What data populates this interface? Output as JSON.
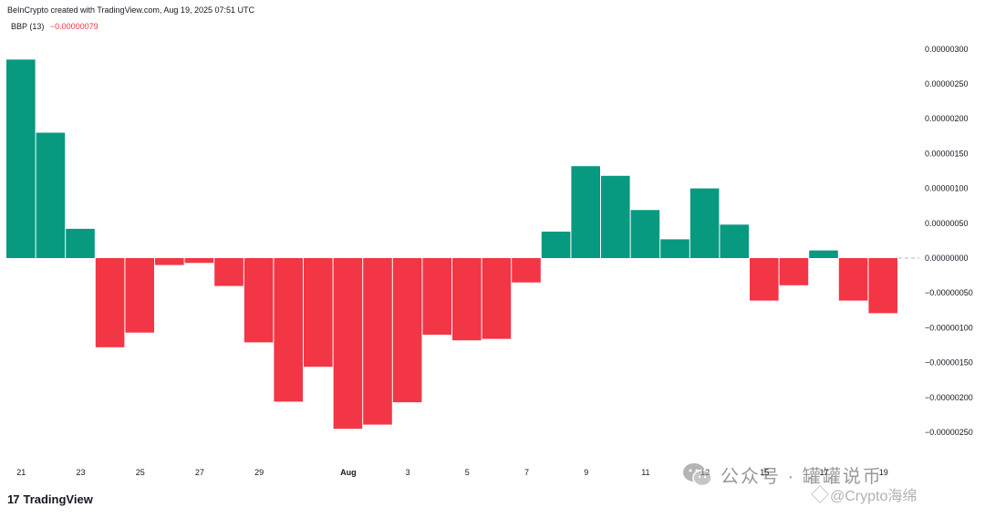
{
  "header": {
    "credit": "BeInCrypto created with TradingView.com, Aug 19, 2025 07:51 UTC"
  },
  "indicator": {
    "name": "BBP (13)",
    "value": "−0.00000079"
  },
  "brand": {
    "logo_text": "TradingView"
  },
  "watermark": {
    "text": "公众号 · 罐罐说币",
    "handle": "@Crypto海绵"
  },
  "colors": {
    "positive": "#089981",
    "negative": "#f23645"
  },
  "chart_data": {
    "type": "bar",
    "title": "",
    "xlabel": "",
    "ylabel": "",
    "ylim": [
      -2.9e-06,
      3e-06
    ],
    "grid": false,
    "x_tick_labels": [
      "21",
      "23",
      "25",
      "27",
      "29",
      "Aug",
      "3",
      "5",
      "7",
      "9",
      "11",
      "13",
      "15",
      "17",
      "19"
    ],
    "y_tick_labels": [
      "0.00000300",
      "0.00000250",
      "0.00000200",
      "0.00000150",
      "0.00000100",
      "0.00000050",
      "0.00000000",
      "−0.00000050",
      "−0.00000100",
      "−0.00000150",
      "−0.00000200",
      "−0.00000250"
    ],
    "y_ticks": [
      3e-06,
      2.5e-06,
      2e-06,
      1.5e-06,
      1e-06,
      5e-07,
      0,
      -5e-07,
      -1e-06,
      -1.5e-06,
      -2e-06,
      -2.5e-06
    ],
    "categories": [
      "Jul 21",
      "Jul 22",
      "Jul 23",
      "Jul 24",
      "Jul 25",
      "Jul 26",
      "Jul 27",
      "Jul 28",
      "Jul 29",
      "Jul 30",
      "Jul 31",
      "Aug 1",
      "Aug 2",
      "Aug 3",
      "Aug 4",
      "Aug 5",
      "Aug 6",
      "Aug 7",
      "Aug 8",
      "Aug 9",
      "Aug 10",
      "Aug 11",
      "Aug 12",
      "Aug 13",
      "Aug 14",
      "Aug 15",
      "Aug 16",
      "Aug 17",
      "Aug 18",
      "Aug 19"
    ],
    "values": [
      2.85e-06,
      1.8e-06,
      4.2e-07,
      -1.28e-06,
      -1.07e-06,
      -1e-07,
      -7e-08,
      -4e-07,
      -1.21e-06,
      -2.06e-06,
      -1.56e-06,
      -2.45e-06,
      -2.39e-06,
      -2.07e-06,
      -1.1e-06,
      -1.18e-06,
      -1.16e-06,
      -3.5e-07,
      3.8e-07,
      1.32e-06,
      1.18e-06,
      6.9e-07,
      2.7e-07,
      1e-06,
      4.8e-07,
      -6.1e-07,
      -3.9e-07,
      1.1e-07,
      -6.1e-07,
      -7.9e-07
    ]
  }
}
